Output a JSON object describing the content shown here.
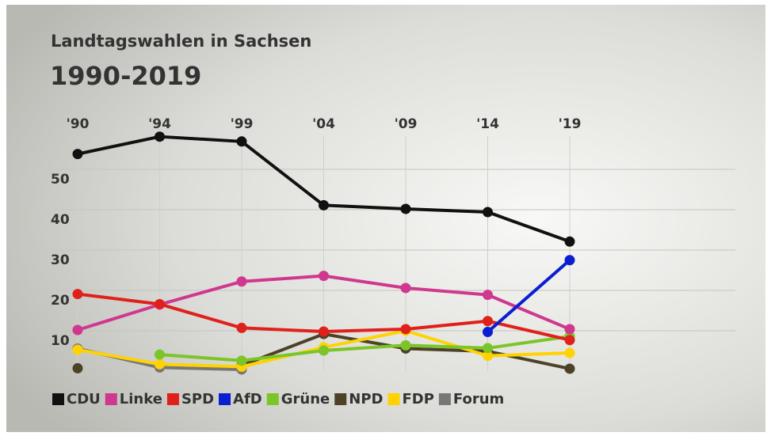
{
  "chart_data": {
    "type": "line",
    "title": "Landtagswahlen in Sachsen",
    "subtitle": "1990-2019",
    "categories": [
      "'90",
      "'94",
      "'99",
      "'04",
      "'09",
      "'14",
      "'19"
    ],
    "ylim": [
      0,
      60
    ],
    "yticks": [
      10,
      20,
      30,
      40,
      50
    ],
    "grid": true,
    "series": [
      {
        "name": "CDU",
        "color": "#111111",
        "values": [
          53.8,
          58.1,
          56.9,
          41.1,
          40.2,
          39.4,
          32.1
        ]
      },
      {
        "name": "Linke",
        "color": "#d0378e",
        "values": [
          10.2,
          16.5,
          22.2,
          23.6,
          20.6,
          18.9,
          10.4
        ]
      },
      {
        "name": "SPD",
        "color": "#e0201b",
        "values": [
          19.1,
          16.6,
          10.7,
          9.8,
          10.4,
          12.4,
          7.7
        ]
      },
      {
        "name": "AfD",
        "color": "#0a1fd0",
        "values": [
          null,
          null,
          null,
          null,
          null,
          9.7,
          27.5
        ]
      },
      {
        "name": "Grüne",
        "color": "#7cc528",
        "values": [
          null,
          4.1,
          2.6,
          5.1,
          6.4,
          5.7,
          8.6
        ]
      },
      {
        "name": "NPD",
        "color": "#4d4228",
        "values": [
          0.7,
          null,
          1.4,
          9.2,
          5.6,
          4.9,
          0.6
        ]
      },
      {
        "name": "FDP",
        "color": "#ffd200",
        "values": [
          5.3,
          1.7,
          1.1,
          5.9,
          10.0,
          3.8,
          4.5
        ]
      },
      {
        "name": "Forum",
        "color": "#777777",
        "values": [
          5.6,
          0.9,
          0.4,
          null,
          null,
          null,
          null
        ]
      }
    ]
  }
}
